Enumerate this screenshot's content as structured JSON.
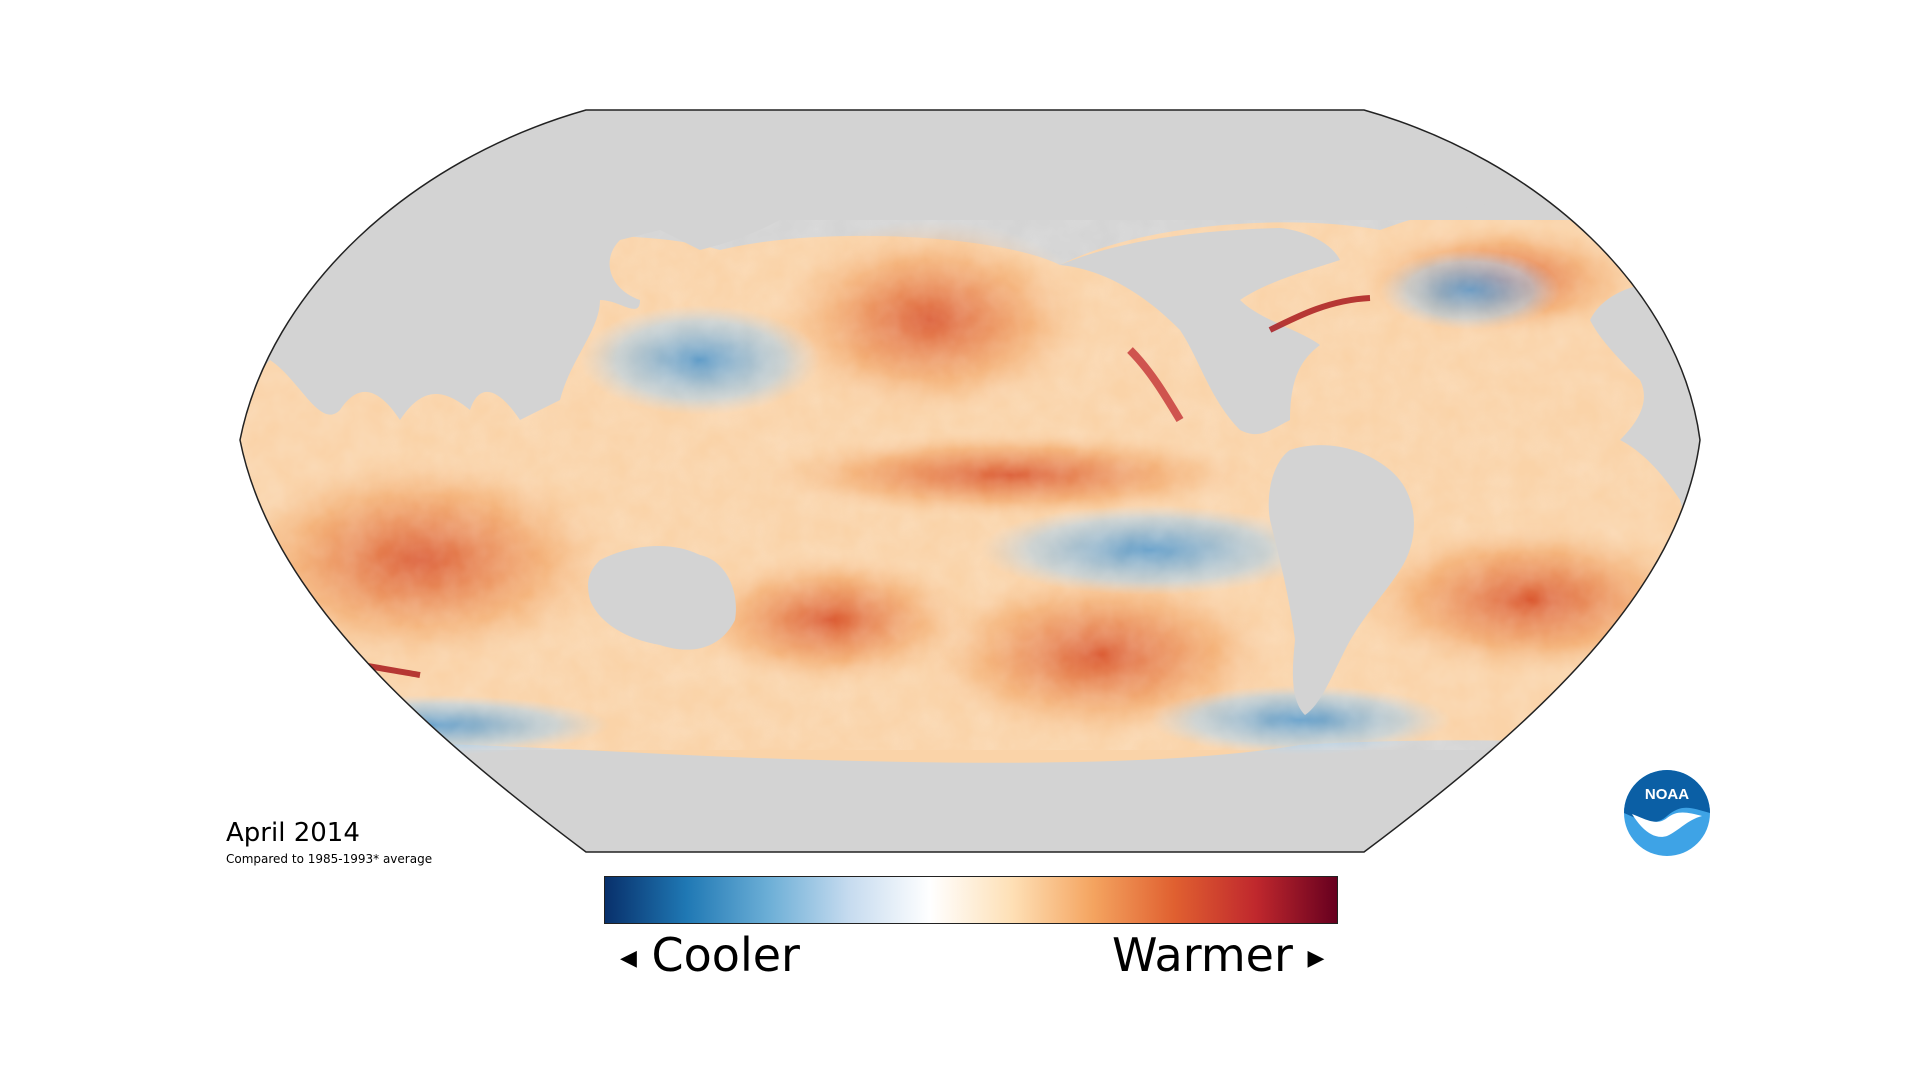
{
  "title": {
    "date": "April 2014",
    "subtitle": "Compared to 1985-1993* average"
  },
  "legend": {
    "left_label": "Cooler",
    "right_label": "Warmer",
    "colors": [
      "#08306b",
      "#1f78b4",
      "#6baed6",
      "#c6dbef",
      "#ffffff",
      "#fee0b6",
      "#f4a460",
      "#e06030",
      "#c0282d",
      "#67001f"
    ]
  },
  "map": {
    "projection": "robinson",
    "land_color": "#d3d3d3",
    "ocean_anomaly_colors": {
      "cool_strong": "#1f6fb4",
      "cool_light": "#c6dbef",
      "neutral": "#fdf7ef",
      "warm_light": "#fad3a8",
      "warm_medium": "#f2a566",
      "warm_strong": "#d9532b",
      "warm_extreme": "#a50f15"
    }
  },
  "logo": {
    "text": "NOAA",
    "colors": {
      "primary": "#0b5fa5",
      "light": "#3ea3e6",
      "white": "#ffffff"
    }
  }
}
